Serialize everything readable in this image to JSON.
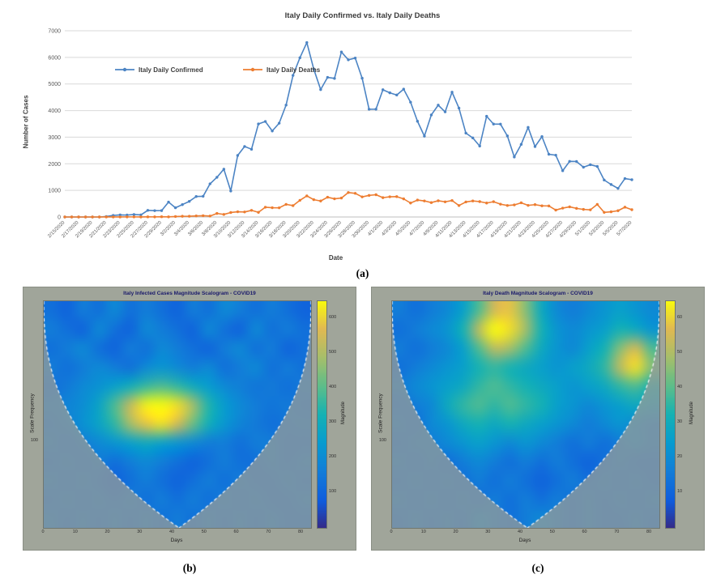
{
  "labels": {
    "a": "(a)",
    "b": "(b)",
    "c": "(c)"
  },
  "chart_data": [
    {
      "id": "daily-confirmed-vs-deaths",
      "type": "line",
      "title": "Italy Daily Confirmed vs. Italy Daily Deaths",
      "xlabel": "Date",
      "ylabel": "Number of Cases",
      "ylim": [
        0,
        7000
      ],
      "y_ticks": [
        0,
        1000,
        2000,
        3000,
        4000,
        5000,
        6000,
        7000
      ],
      "grid": "horizontal",
      "legend_position": "inside-top-left",
      "x_tick_labels": [
        "2/15/2020",
        "2/17/2020",
        "2/19/2020",
        "2/21/2020",
        "2/23/2020",
        "2/25/2020",
        "2/27/2020",
        "2/29/2020",
        "3/2/2020",
        "3/4/2020",
        "3/6/2020",
        "3/8/2020",
        "3/10/2020",
        "3/12/2020",
        "3/14/2020",
        "3/16/2020",
        "3/18/2020",
        "3/20/2020",
        "3/22/2020",
        "3/24/2020",
        "3/26/2020",
        "3/28/2020",
        "3/30/2020",
        "4/1/2020",
        "4/3/2020",
        "4/5/2020",
        "4/7/2020",
        "4/9/2020",
        "4/11/2020",
        "4/13/2020",
        "4/15/2020",
        "4/17/2020",
        "4/19/2020",
        "4/21/2020",
        "4/23/2020",
        "4/25/2020",
        "4/27/2020",
        "4/29/2020",
        "5/1/2020",
        "5/3/2020",
        "5/5/2020",
        "5/7/2020"
      ],
      "series": [
        {
          "name": "Italy Daily Confirmed",
          "color": "#4C84C4",
          "values": [
            0,
            0,
            0,
            0,
            0,
            0,
            17,
            59,
            78,
            72,
            93,
            78,
            250,
            238,
            240,
            561,
            347,
            466,
            587,
            769,
            778,
            1247,
            1492,
            1797,
            977,
            2313,
            2651,
            2547,
            3497,
            3590,
            3233,
            3526,
            4207,
            5322,
            5986,
            6557,
            5560,
            4789,
            5249,
            5210,
            6203,
            5909,
            5974,
            5217,
            4050,
            4053,
            4782,
            4668,
            4585,
            4805,
            4316,
            3599,
            3039,
            3836,
            4204,
            3951,
            4694,
            4092,
            3153,
            2972,
            2667,
            3786,
            3493,
            3491,
            3047,
            2256,
            2729,
            3370,
            2646,
            3021,
            2357,
            2324,
            1739,
            2091,
            2086,
            1872,
            1965,
            1900,
            1389,
            1221,
            1075,
            1444,
            1401
          ]
        },
        {
          "name": "Italy Daily Deaths",
          "color": "#ED7D31",
          "values": [
            0,
            0,
            0,
            0,
            0,
            0,
            1,
            1,
            1,
            4,
            4,
            1,
            5,
            4,
            8,
            5,
            18,
            27,
            28,
            41,
            49,
            36,
            133,
            97,
            168,
            196,
            189,
            250,
            175,
            368,
            349,
            345,
            475,
            427,
            627,
            793,
            651,
            601,
            743,
            683,
            712,
            919,
            889,
            756,
            812,
            837,
            727,
            760,
            766,
            681,
            525,
            636,
            604,
            542,
            610,
            570,
            619,
            431,
            566,
            602,
            578,
            525,
            575,
            482,
            433,
            454,
            534,
            437,
            464,
            420,
            415,
            260,
            333,
            382,
            323,
            285,
            269,
            474,
            174,
            195,
            236,
            369,
            274
          ]
        }
      ]
    },
    {
      "id": "scalogram-infected",
      "type": "heatmap",
      "title": "Italy Infected Cases Magnitude Scalogram - COVID19",
      "xlabel": "Days",
      "ylabel": "Scale Frequency",
      "colorbar_label": "Magnitude",
      "colormap": "parula",
      "xlim": [
        0,
        83
      ],
      "x_ticks": [
        0,
        10,
        20,
        30,
        40,
        50,
        60,
        70,
        80
      ],
      "y_tick_labels": [
        {
          "text": "100",
          "pos": 0.62
        }
      ],
      "colorbar_ticks": [
        100,
        200,
        300,
        400,
        500,
        600
      ],
      "colorbar_max": 650,
      "cone_apex_frac": 0.506,
      "grid": [
        [
          0.2,
          0.15,
          0.25,
          0.2,
          0.3,
          0.2,
          0.25,
          0.2,
          0.15,
          0.25,
          0.2,
          0.3,
          0.25,
          0.2,
          0.25,
          0.2,
          0.15
        ],
        [
          0.25,
          0.2,
          0.15,
          0.3,
          0.2,
          0.15,
          0.3,
          0.25,
          0.2,
          0.15,
          0.3,
          0.2,
          0.15,
          0.3,
          0.2,
          0.25,
          0.2
        ],
        [
          0.2,
          0.25,
          0.3,
          0.2,
          0.15,
          0.25,
          0.2,
          0.3,
          0.25,
          0.2,
          0.15,
          0.25,
          0.3,
          0.2,
          0.25,
          0.15,
          0.2
        ],
        [
          0.25,
          0.2,
          0.25,
          0.3,
          0.25,
          0.2,
          0.3,
          0.35,
          0.3,
          0.25,
          0.3,
          0.2,
          0.25,
          0.3,
          0.2,
          0.25,
          0.2
        ],
        [
          0.2,
          0.24,
          0.3,
          0.34,
          0.4,
          0.48,
          0.56,
          0.6,
          0.55,
          0.46,
          0.38,
          0.3,
          0.26,
          0.22,
          0.24,
          0.2,
          0.24
        ],
        [
          0.25,
          0.28,
          0.32,
          0.42,
          0.6,
          0.82,
          0.98,
          1.0,
          0.95,
          0.75,
          0.52,
          0.38,
          0.3,
          0.25,
          0.22,
          0.24,
          0.2
        ],
        [
          0.22,
          0.26,
          0.34,
          0.42,
          0.55,
          0.75,
          0.9,
          0.95,
          0.85,
          0.65,
          0.48,
          0.36,
          0.28,
          0.24,
          0.2,
          0.22,
          0.24
        ],
        [
          0.25,
          0.2,
          0.25,
          0.3,
          0.35,
          0.4,
          0.45,
          0.4,
          0.35,
          0.3,
          0.25,
          0.25,
          0.2,
          0.25,
          0.25,
          0.2,
          0.2
        ],
        [
          0.2,
          0.25,
          0.2,
          0.25,
          0.2,
          0.25,
          0.3,
          0.25,
          0.2,
          0.15,
          0.2,
          0.25,
          0.2,
          0.2,
          0.25,
          0.2,
          0.25
        ],
        [
          0.25,
          0.2,
          0.25,
          0.2,
          0.15,
          0.2,
          0.25,
          0.2,
          0.15,
          0.2,
          0.25,
          0.2,
          0.25,
          0.2,
          0.2,
          0.25,
          0.2
        ],
        [
          0.2,
          0.25,
          0.2,
          0.25,
          0.2,
          0.25,
          0.2,
          0.25,
          0.2,
          0.25,
          0.2,
          0.25,
          0.2,
          0.25,
          0.2,
          0.2,
          0.25
        ],
        [
          0.25,
          0.2,
          0.25,
          0.2,
          0.25,
          0.2,
          0.25,
          0.2,
          0.25,
          0.2,
          0.25,
          0.2,
          0.25,
          0.2,
          0.25,
          0.2,
          0.2
        ]
      ]
    },
    {
      "id": "scalogram-deaths",
      "type": "heatmap",
      "title": "Italy Death Magnitude Scalogram - COVID19",
      "xlabel": "Days",
      "ylabel": "Scale Frequency",
      "colorbar_label": "Magnitude",
      "colormap": "parula",
      "xlim": [
        0,
        83
      ],
      "x_ticks": [
        0,
        10,
        20,
        30,
        40,
        50,
        60,
        70,
        80
      ],
      "y_tick_labels": [
        {
          "text": "100",
          "pos": 0.62
        }
      ],
      "colorbar_ticks": [
        10,
        20,
        30,
        40,
        50,
        60
      ],
      "colorbar_max": 65,
      "cone_apex_frac": 0.506,
      "grid": [
        [
          0.25,
          0.2,
          0.25,
          0.3,
          0.4,
          0.6,
          0.85,
          0.9,
          0.7,
          0.45,
          0.3,
          0.25,
          0.3,
          0.35,
          0.4,
          0.35,
          0.3
        ],
        [
          0.2,
          0.25,
          0.3,
          0.35,
          0.5,
          0.8,
          1.0,
          0.95,
          0.75,
          0.5,
          0.35,
          0.3,
          0.35,
          0.4,
          0.5,
          0.45,
          0.35
        ],
        [
          0.25,
          0.2,
          0.25,
          0.3,
          0.4,
          0.6,
          0.8,
          0.75,
          0.6,
          0.45,
          0.35,
          0.3,
          0.4,
          0.5,
          0.7,
          0.85,
          0.6
        ],
        [
          0.2,
          0.25,
          0.3,
          0.35,
          0.4,
          0.5,
          0.55,
          0.5,
          0.45,
          0.4,
          0.35,
          0.4,
          0.45,
          0.55,
          0.8,
          0.95,
          0.7
        ],
        [
          0.25,
          0.3,
          0.35,
          0.4,
          0.45,
          0.55,
          0.6,
          0.55,
          0.5,
          0.45,
          0.4,
          0.35,
          0.4,
          0.45,
          0.55,
          0.6,
          0.5
        ],
        [
          0.2,
          0.25,
          0.3,
          0.45,
          0.55,
          0.6,
          0.55,
          0.6,
          0.55,
          0.5,
          0.4,
          0.35,
          0.3,
          0.35,
          0.4,
          0.45,
          0.4
        ],
        [
          0.25,
          0.2,
          0.3,
          0.35,
          0.45,
          0.5,
          0.45,
          0.5,
          0.45,
          0.4,
          0.35,
          0.3,
          0.25,
          0.3,
          0.35,
          0.3,
          0.25
        ],
        [
          0.2,
          0.25,
          0.25,
          0.3,
          0.35,
          0.4,
          0.35,
          0.3,
          0.35,
          0.3,
          0.25,
          0.2,
          0.25,
          0.2,
          0.25,
          0.3,
          0.25
        ],
        [
          0.25,
          0.2,
          0.25,
          0.2,
          0.25,
          0.3,
          0.25,
          0.2,
          0.25,
          0.2,
          0.25,
          0.2,
          0.15,
          0.2,
          0.25,
          0.2,
          0.2
        ],
        [
          0.2,
          0.25,
          0.2,
          0.25,
          0.2,
          0.25,
          0.2,
          0.25,
          0.2,
          0.15,
          0.2,
          0.25,
          0.2,
          0.25,
          0.2,
          0.25,
          0.2
        ],
        [
          0.25,
          0.2,
          0.25,
          0.2,
          0.25,
          0.2,
          0.25,
          0.2,
          0.25,
          0.2,
          0.25,
          0.2,
          0.25,
          0.2,
          0.25,
          0.2,
          0.25
        ],
        [
          0.2,
          0.25,
          0.2,
          0.25,
          0.2,
          0.3,
          0.25,
          0.2,
          0.25,
          0.3,
          0.25,
          0.2,
          0.25,
          0.2,
          0.2,
          0.25,
          0.2
        ]
      ]
    }
  ]
}
